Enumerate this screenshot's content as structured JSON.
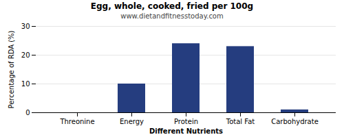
{
  "chart_data": {
    "type": "bar",
    "title": "Egg, whole, cooked, fried per 100g",
    "subtitle": "www.dietandfitnesstoday.com",
    "categories": [
      "Threonine",
      "Energy",
      "Protein",
      "Total Fat",
      "Carbohydrate"
    ],
    "values": [
      0,
      10,
      24,
      23,
      1
    ],
    "color": "#253D7F",
    "xlabel": "Different Nutrients",
    "ylabel": "Percentage of RDA (%)",
    "ylim": [
      0,
      30
    ],
    "yticks": [
      0,
      10,
      20,
      30
    ],
    "grid": true
  }
}
